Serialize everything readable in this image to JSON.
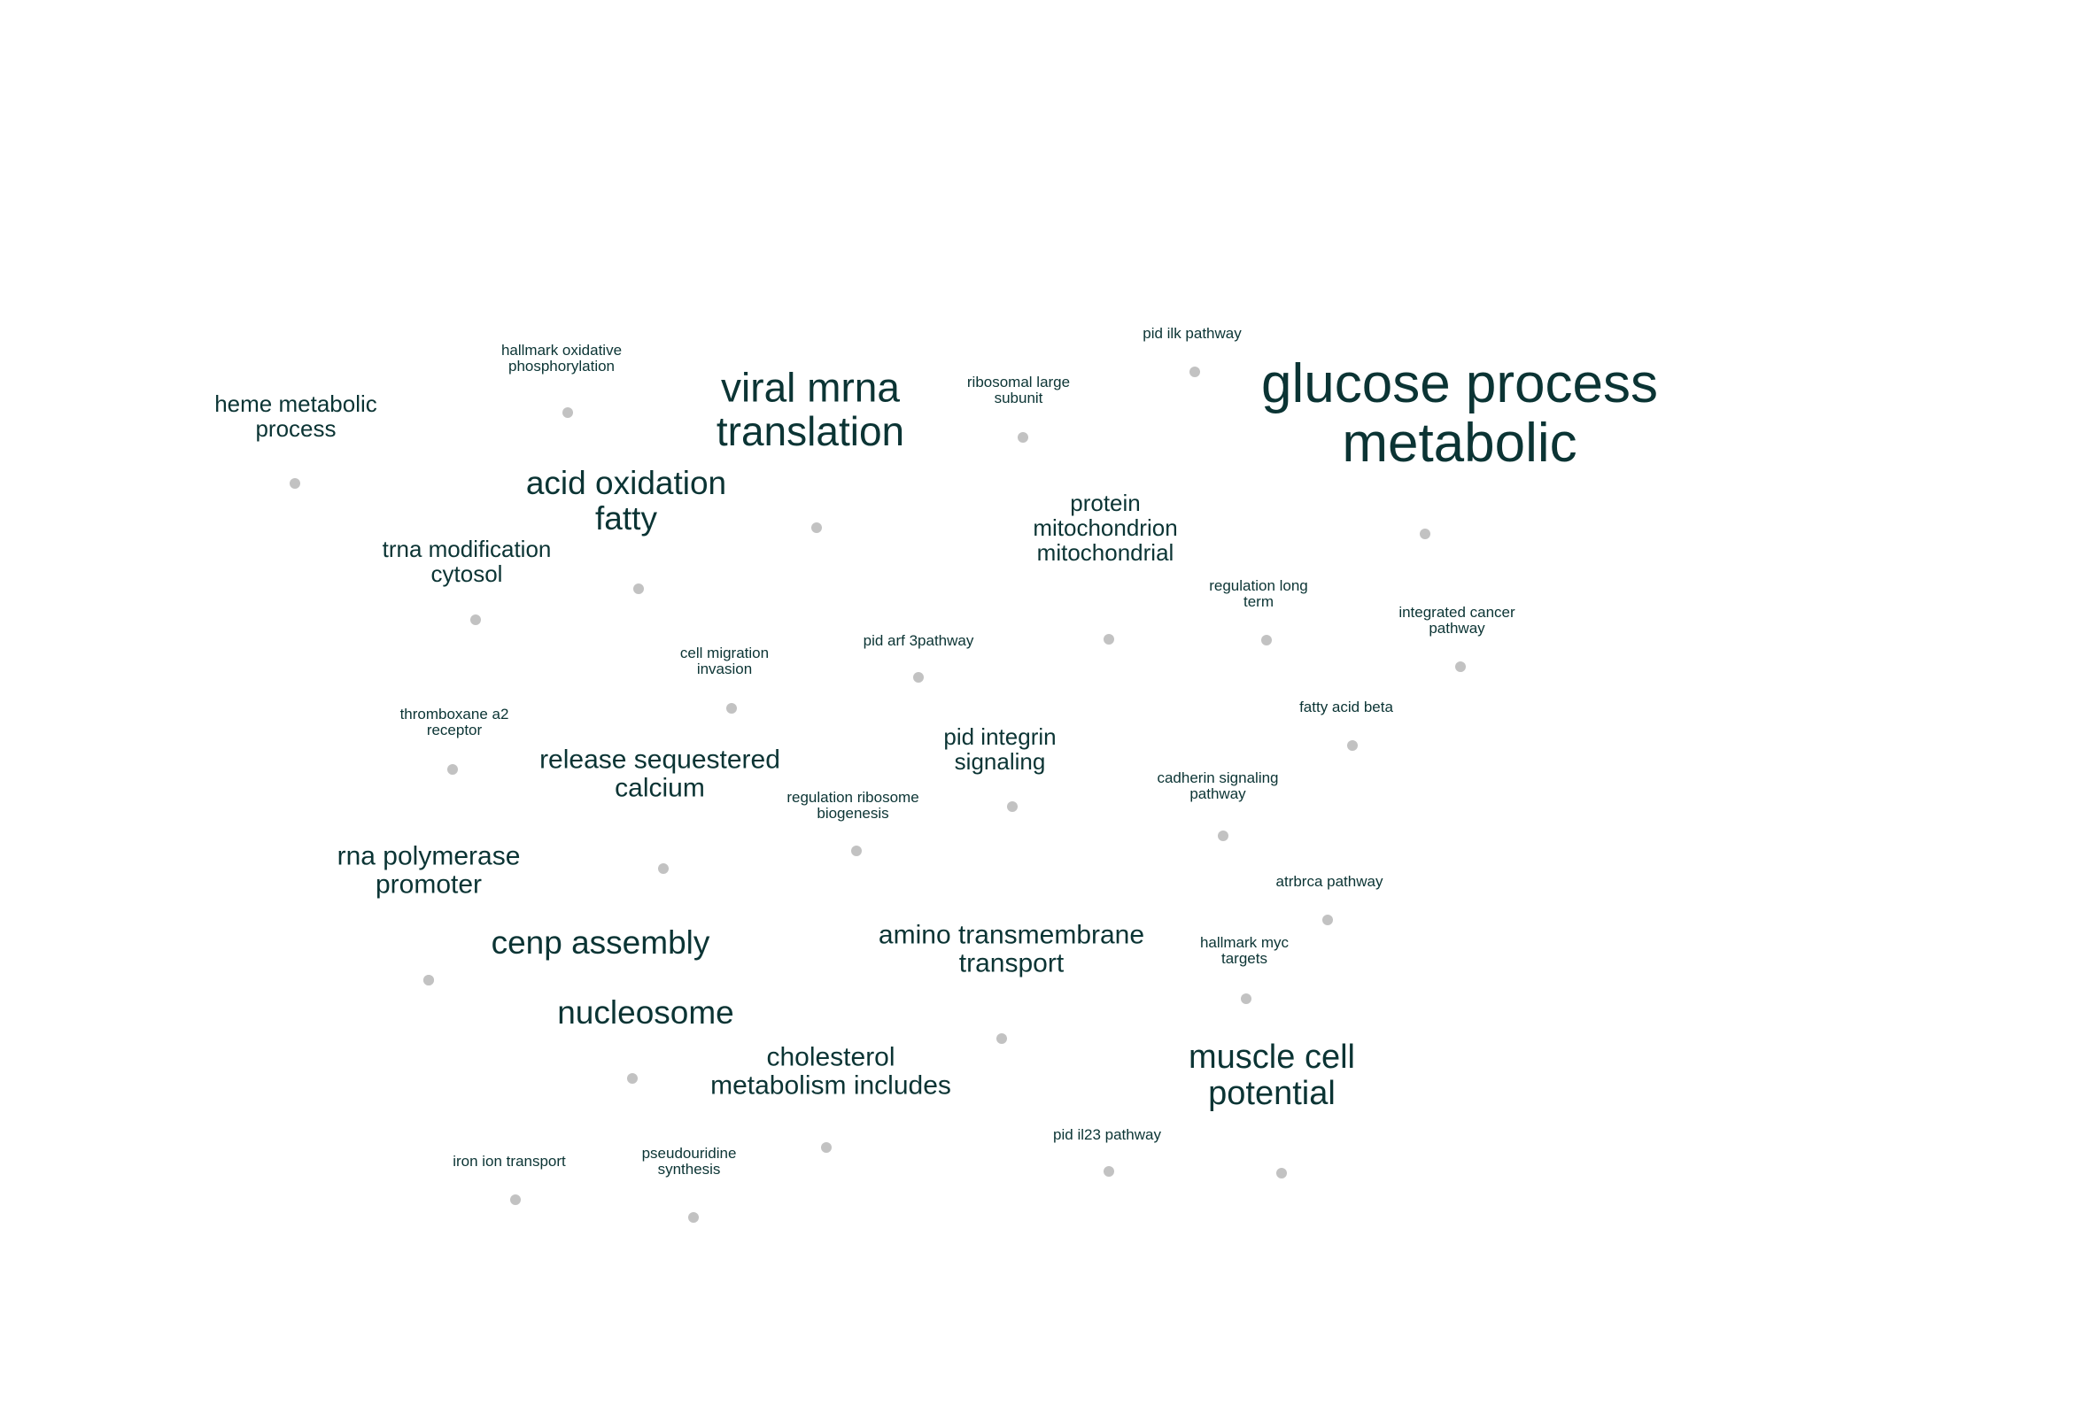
{
  "chart_data": {
    "type": "scatter",
    "title": "",
    "xlabel": "",
    "ylabel": "",
    "xlim": [
      0,
      100
    ],
    "ylim": [
      0,
      100
    ],
    "grid": false,
    "legend": "none",
    "colors": {
      "text": "#0b3434",
      "point": "#c2c2c2",
      "background": "#ffffff"
    },
    "points": [
      {
        "name": "heme-metabolic-process",
        "x": 14.0,
        "y": 66.9,
        "size": 2,
        "lines": [
          "heme metabolic",
          "process"
        ]
      },
      {
        "name": "hallmark-oxidative-phosphorylation",
        "x": 27.0,
        "y": 71.1,
        "size": 1,
        "lines": [
          "hallmark oxidative",
          "phosphorylation"
        ]
      },
      {
        "name": "viral-mrna-translation",
        "x": 38.8,
        "y": 62.6,
        "size": 4,
        "lines": [
          "viral mrna",
          "translation"
        ]
      },
      {
        "name": "ribosomal-large-subunit",
        "x": 48.7,
        "y": 69.1,
        "size": 1,
        "lines": [
          "ribosomal large",
          "subunit"
        ]
      },
      {
        "name": "pid-ilk-pathway",
        "x": 56.9,
        "y": 73.7,
        "size": 1,
        "lines": [
          "pid ilk pathway"
        ]
      },
      {
        "name": "glucose-process-metabolic",
        "x": 67.8,
        "y": 62.0,
        "size": 6,
        "lines": [
          "glucose process",
          "metabolic"
        ]
      },
      {
        "name": "acid-oxidation-fatty",
        "x": 30.4,
        "y": 58.3,
        "size": 3,
        "lines": [
          "acid oxidation",
          "fatty"
        ]
      },
      {
        "name": "trna-modification-cytosol",
        "x": 22.6,
        "y": 56.1,
        "size": 2,
        "lines": [
          "trna modification",
          "cytosol"
        ]
      },
      {
        "name": "protein-mitochondrion-mitochondrial",
        "x": 52.8,
        "y": 54.6,
        "size": 2,
        "lines": [
          "protein",
          "mitochondrion",
          "mitochondrial"
        ]
      },
      {
        "name": "regulation-long-term",
        "x": 60.3,
        "y": 54.5,
        "size": 1,
        "lines": [
          "regulation long",
          "term"
        ]
      },
      {
        "name": "integrated-cancer-pathway",
        "x": 69.6,
        "y": 52.6,
        "size": 1,
        "lines": [
          "integrated cancer",
          "pathway"
        ]
      },
      {
        "name": "cell-migration-invasion",
        "x": 34.8,
        "y": 49.7,
        "size": 1,
        "lines": [
          "cell migration",
          "invasion"
        ]
      },
      {
        "name": "pid-arf-3pathway",
        "x": 43.8,
        "y": 51.9,
        "size": 1,
        "lines": [
          "pid arf 3pathway"
        ]
      },
      {
        "name": "fatty-acid-beta",
        "x": 64.4,
        "y": 47.3,
        "size": 1,
        "lines": [
          "fatty acid beta"
        ]
      },
      {
        "name": "thromboxane-a2-receptor",
        "x": 21.6,
        "y": 45.6,
        "size": 1,
        "lines": [
          "thromboxane a2",
          "receptor"
        ]
      },
      {
        "name": "release-sequestered-calcium",
        "x": 31.6,
        "y": 38.5,
        "size": 2.5,
        "lines": [
          "release sequestered",
          "calcium"
        ]
      },
      {
        "name": "pid-integrin-signaling",
        "x": 48.2,
        "y": 42.7,
        "size": 2,
        "lines": [
          "pid integrin",
          "signaling"
        ]
      },
      {
        "name": "regulation-ribosome-biogenesis",
        "x": 40.8,
        "y": 39.7,
        "size": 1,
        "lines": [
          "regulation ribosome",
          "biogenesis"
        ]
      },
      {
        "name": "cadherin-signaling-pathway",
        "x": 58.3,
        "y": 40.6,
        "size": 1,
        "lines": [
          "cadherin signaling",
          "pathway"
        ]
      },
      {
        "name": "rna-polymerase-promoter",
        "x": 20.4,
        "y": 30.6,
        "size": 2.5,
        "lines": [
          "rna polymerase",
          "promoter"
        ]
      },
      {
        "name": "atrbrca-pathway",
        "x": 63.2,
        "y": 34.6,
        "size": 1,
        "lines": [
          "atrbrca pathway"
        ]
      },
      {
        "name": "cenp-assembly",
        "x": 30.2,
        "y": 23.6,
        "size": 3,
        "lines": [
          "cenp assembly"
        ]
      },
      {
        "name": "amino-transmembrane-transport",
        "x": 47.7,
        "y": 26.4,
        "size": 2.5,
        "lines": [
          "amino transmembrane",
          "transport"
        ]
      },
      {
        "name": "hallmark-myc-targets",
        "x": 59.4,
        "y": 29.1,
        "size": 1,
        "lines": [
          "hallmark myc",
          "targets"
        ]
      },
      {
        "name": "nucleosome",
        "x": 39.4,
        "y": 16.5,
        "size": 3,
        "lines": [
          "nucleosome"
        ]
      },
      {
        "name": "cholesterol-metabolism-includes",
        "x": 47.7,
        "y": 23.4,
        "size": 2.5,
        "lines": [
          "cholesterol",
          "metabolism includes"
        ]
      },
      {
        "name": "muscle-cell-potential",
        "x": 61.1,
        "y": 12.5,
        "size": 3.5,
        "lines": [
          "muscle cell",
          "potential"
        ]
      },
      {
        "name": "pid-il23-pathway",
        "x": 52.9,
        "y": 12.6,
        "size": 1,
        "lines": [
          "pid il23 pathway"
        ]
      },
      {
        "name": "iron-ion-transport",
        "x": 24.6,
        "y": 10.6,
        "size": 1,
        "lines": [
          "iron ion transport"
        ]
      },
      {
        "name": "pseudouridine-synthesis",
        "x": 33.1,
        "y": 9.1,
        "size": 1,
        "lines": [
          "pseudouridine",
          "synthesis"
        ]
      }
    ]
  }
}
